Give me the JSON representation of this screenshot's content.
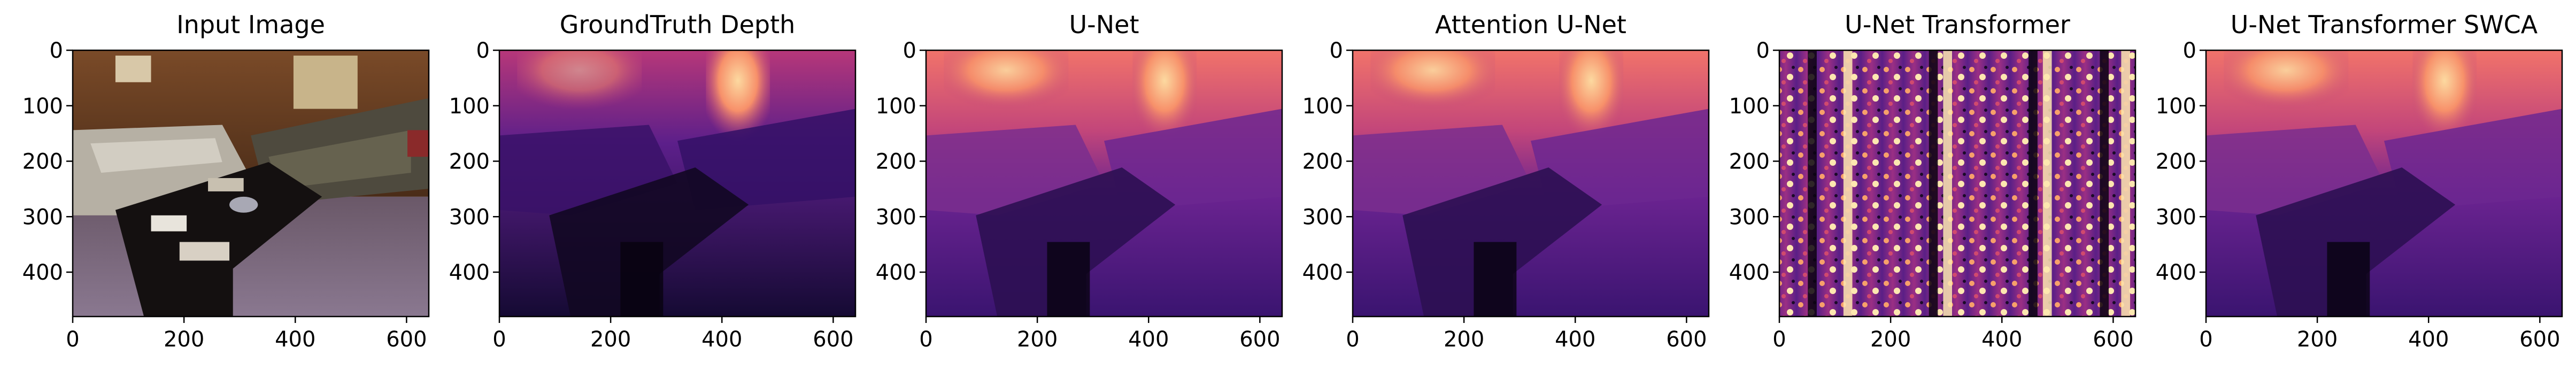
{
  "figure": {
    "panels": [
      {
        "title": "Input Image",
        "kind": "rgb"
      },
      {
        "title": "GroundTruth Depth",
        "kind": "depth"
      },
      {
        "title": "U-Net",
        "kind": "depth"
      },
      {
        "title": "Attention U-Net",
        "kind": "depth"
      },
      {
        "title": "U-Net Transformer",
        "kind": "noise"
      },
      {
        "title": "U-Net Transformer SWCA",
        "kind": "depth"
      }
    ],
    "x_ticks": [
      0,
      200,
      400,
      600
    ],
    "y_ticks": [
      0,
      100,
      200,
      300,
      400
    ],
    "x_range": [
      0,
      640
    ],
    "y_range": [
      0,
      480
    ],
    "colormap": "magma"
  }
}
